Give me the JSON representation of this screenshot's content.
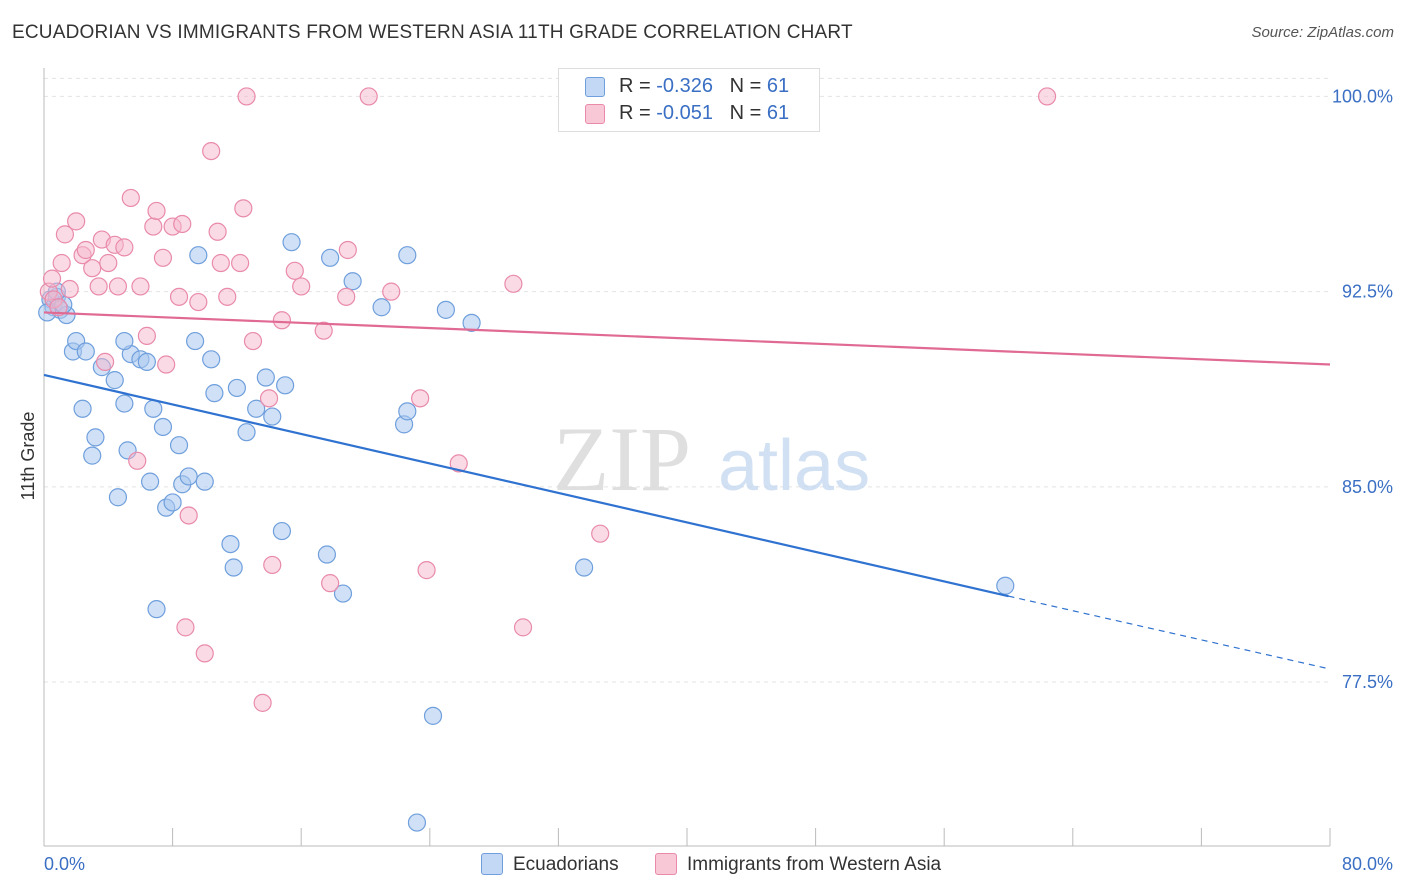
{
  "title": "ECUADORIAN VS IMMIGRANTS FROM WESTERN ASIA 11TH GRADE CORRELATION CHART",
  "source": "Source: ZipAtlas.com",
  "watermark": {
    "zip": "ZIP",
    "atlas": "atlas"
  },
  "legend": {
    "r_label": "R =",
    "n_label": "N =",
    "rows": [
      {
        "r": "-0.326",
        "n": "61"
      },
      {
        "r": "-0.051",
        "n": "61"
      }
    ]
  },
  "colors": {
    "blue_fill": "#a9c8f0",
    "blue_stroke": "#6f9fdc",
    "blue_line": "#2f72d0",
    "pink_fill": "#f6b8cb",
    "pink_stroke": "#e98aaa",
    "pink_line": "#e06a93",
    "axis_text": "#3a6fc4",
    "grid": "#e3e3e3"
  },
  "chart_data": {
    "type": "scatter",
    "title": "ECUADORIAN VS IMMIGRANTS FROM WESTERN ASIA 11TH GRADE CORRELATION CHART",
    "xlabel": "",
    "ylabel": "11th Grade",
    "xlim": [
      0,
      80
    ],
    "ylim": [
      71.2,
      101.4
    ],
    "x_tick_labels": [
      "0.0%",
      "80.0%"
    ],
    "y_ticks": [
      100.0,
      92.5,
      85.0,
      77.5
    ],
    "y_tick_labels": [
      "100.0%",
      "92.5%",
      "85.0%",
      "77.5%"
    ],
    "grid": true,
    "legend_position": "top-center",
    "series": [
      {
        "name": "Ecuadorians",
        "color": "#a9c8f0",
        "trend": {
          "x0": 0,
          "y0": 89.3,
          "x1": 60.0,
          "y1": 80.8,
          "dash_to_x": 80,
          "dash_to_y": 78.0
        },
        "points": [
          [
            0.4,
            92.2
          ],
          [
            0.6,
            91.9
          ],
          [
            0.8,
            92.3
          ],
          [
            1.0,
            91.8
          ],
          [
            1.4,
            91.6
          ],
          [
            1.8,
            90.2
          ],
          [
            2.0,
            90.6
          ],
          [
            2.4,
            88.0
          ],
          [
            2.6,
            90.2
          ],
          [
            3.0,
            86.2
          ],
          [
            3.2,
            86.9
          ],
          [
            3.6,
            89.6
          ],
          [
            4.4,
            89.1
          ],
          [
            4.6,
            84.6
          ],
          [
            5.0,
            88.2
          ],
          [
            5.2,
            86.4
          ],
          [
            5.4,
            90.1
          ],
          [
            6.0,
            89.9
          ],
          [
            6.4,
            89.8
          ],
          [
            6.6,
            85.2
          ],
          [
            6.8,
            88.0
          ],
          [
            7.0,
            80.3
          ],
          [
            7.6,
            84.2
          ],
          [
            8.0,
            84.4
          ],
          [
            8.4,
            86.6
          ],
          [
            8.6,
            85.1
          ],
          [
            9.0,
            85.4
          ],
          [
            9.4,
            90.6
          ],
          [
            9.6,
            93.9
          ],
          [
            10.0,
            85.2
          ],
          [
            10.4,
            89.9
          ],
          [
            10.6,
            88.6
          ],
          [
            11.6,
            82.8
          ],
          [
            11.8,
            81.9
          ],
          [
            12.0,
            88.8
          ],
          [
            12.6,
            87.1
          ],
          [
            13.2,
            88.0
          ],
          [
            13.8,
            89.2
          ],
          [
            14.2,
            87.7
          ],
          [
            14.8,
            83.3
          ],
          [
            15.0,
            88.9
          ],
          [
            15.4,
            94.4
          ],
          [
            17.6,
            82.4
          ],
          [
            17.8,
            93.8
          ],
          [
            18.6,
            80.9
          ],
          [
            19.2,
            92.9
          ],
          [
            21.0,
            91.9
          ],
          [
            22.4,
            87.4
          ],
          [
            22.6,
            87.9
          ],
          [
            22.6,
            93.9
          ],
          [
            23.2,
            72.1
          ],
          [
            24.2,
            76.2
          ],
          [
            25.0,
            91.8
          ],
          [
            26.6,
            91.3
          ],
          [
            33.6,
            81.9
          ],
          [
            59.8,
            81.2
          ],
          [
            0.2,
            91.7
          ],
          [
            1.2,
            92.0
          ],
          [
            5.0,
            90.6
          ],
          [
            7.4,
            87.3
          ],
          [
            0.8,
            92.5
          ]
        ]
      },
      {
        "name": "Immigrants from Western Asia",
        "color": "#f6b8cb",
        "trend": {
          "x0": 0,
          "y0": 91.7,
          "x1": 80,
          "y1": 89.7
        },
        "points": [
          [
            0.3,
            92.5
          ],
          [
            0.6,
            92.2
          ],
          [
            0.9,
            91.9
          ],
          [
            1.1,
            93.6
          ],
          [
            1.3,
            94.7
          ],
          [
            1.6,
            92.6
          ],
          [
            2.0,
            95.2
          ],
          [
            2.4,
            93.9
          ],
          [
            2.6,
            94.1
          ],
          [
            3.0,
            93.4
          ],
          [
            3.4,
            92.7
          ],
          [
            3.6,
            94.5
          ],
          [
            4.0,
            93.6
          ],
          [
            4.4,
            94.3
          ],
          [
            4.6,
            92.7
          ],
          [
            5.0,
            94.2
          ],
          [
            5.4,
            96.1
          ],
          [
            5.8,
            86.0
          ],
          [
            6.0,
            92.7
          ],
          [
            6.4,
            90.8
          ],
          [
            6.8,
            95.0
          ],
          [
            7.0,
            95.6
          ],
          [
            7.4,
            93.8
          ],
          [
            7.6,
            89.7
          ],
          [
            8.0,
            95.0
          ],
          [
            8.4,
            92.3
          ],
          [
            8.6,
            95.1
          ],
          [
            8.8,
            79.6
          ],
          [
            9.0,
            83.9
          ],
          [
            9.6,
            92.1
          ],
          [
            10.0,
            78.6
          ],
          [
            10.4,
            97.9
          ],
          [
            10.8,
            94.8
          ],
          [
            11.0,
            93.6
          ],
          [
            11.4,
            92.3
          ],
          [
            12.2,
            93.6
          ],
          [
            12.4,
            95.7
          ],
          [
            12.6,
            100.0
          ],
          [
            13.0,
            90.6
          ],
          [
            13.6,
            76.7
          ],
          [
            14.0,
            88.4
          ],
          [
            14.2,
            82.0
          ],
          [
            14.8,
            91.4
          ],
          [
            15.6,
            93.3
          ],
          [
            16.0,
            92.7
          ],
          [
            17.4,
            91.0
          ],
          [
            17.8,
            81.3
          ],
          [
            18.8,
            92.3
          ],
          [
            18.9,
            94.1
          ],
          [
            20.2,
            100.0
          ],
          [
            21.6,
            92.5
          ],
          [
            23.4,
            88.4
          ],
          [
            23.8,
            81.8
          ],
          [
            25.8,
            85.9
          ],
          [
            29.2,
            92.8
          ],
          [
            29.8,
            79.6
          ],
          [
            34.6,
            83.2
          ],
          [
            38.8,
            100.0
          ],
          [
            62.4,
            100.0
          ],
          [
            0.5,
            93.0
          ],
          [
            3.8,
            89.8
          ]
        ]
      }
    ]
  },
  "bottom_legend": [
    "Ecuadorians",
    "Immigrants from Western Asia"
  ]
}
